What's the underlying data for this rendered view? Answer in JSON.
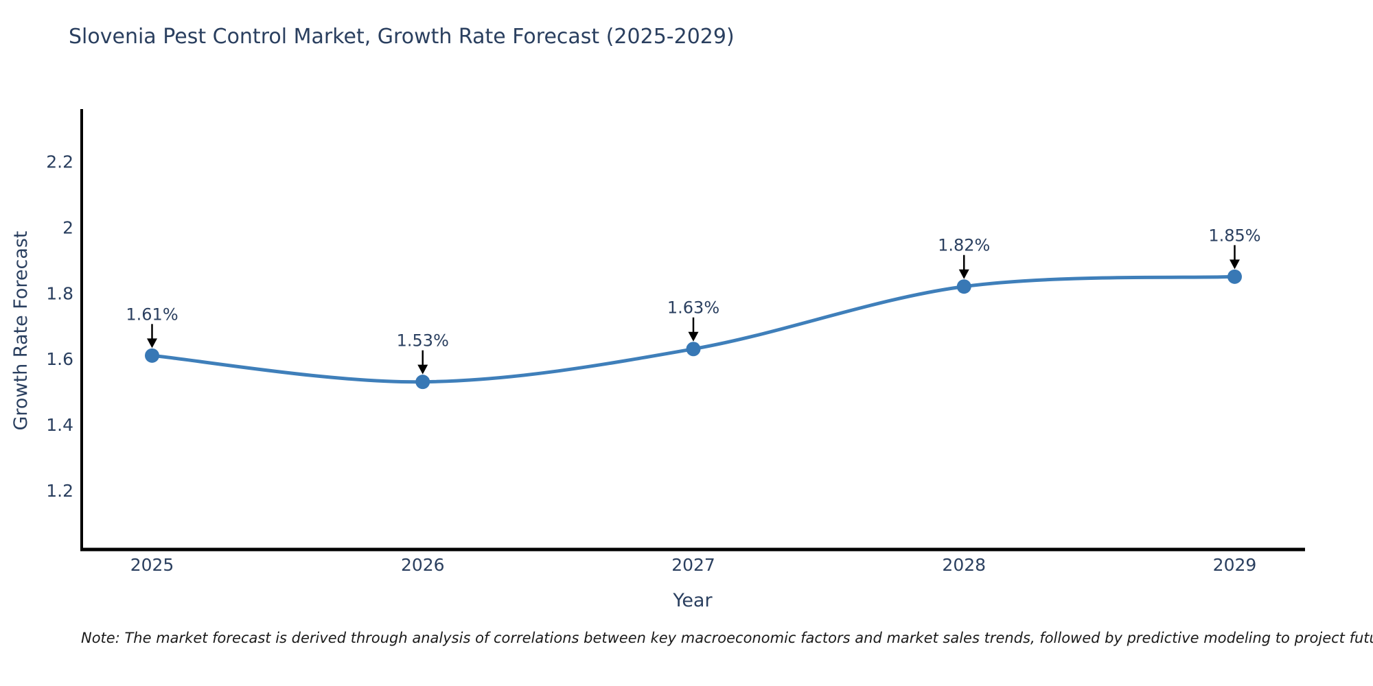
{
  "page": {
    "note": "Note: The market forecast is derived through analysis of correlations between key macroeconomic factors and market sales trends, followed by predictive modeling to project future sales"
  },
  "chart_data": {
    "type": "line",
    "title": "Slovenia Pest Control Market, Growth Rate Forecast (2025-2029)",
    "xlabel": "Year",
    "ylabel": "Growth Rate Forecast",
    "x": [
      2025,
      2026,
      2027,
      2028,
      2029
    ],
    "y": [
      1.61,
      1.53,
      1.63,
      1.82,
      1.85
    ],
    "point_labels": [
      "1.61%",
      "1.53%",
      "1.63%",
      "1.82%",
      "1.85%"
    ],
    "x_tick_labels": [
      "2025",
      "2026",
      "2027",
      "2028",
      "2029"
    ],
    "y_ticks": [
      1.2,
      1.4,
      1.6,
      1.8,
      2,
      2.2
    ],
    "y_tick_labels": [
      "1.2",
      "1.4",
      "1.6",
      "1.8",
      "2",
      "2.2"
    ],
    "xlim": [
      2024.74,
      2029.26
    ],
    "ylim": [
      1.02,
      2.36
    ],
    "line_shape": "spline",
    "grid": false,
    "legend": "none",
    "colors": {
      "line": "#3f7fba",
      "marker": "#3878b5",
      "axis": "#000000",
      "text": "#2a3f5f",
      "arrow": "#000000",
      "note": "#1a1a1a",
      "background": "#ffffff"
    }
  }
}
